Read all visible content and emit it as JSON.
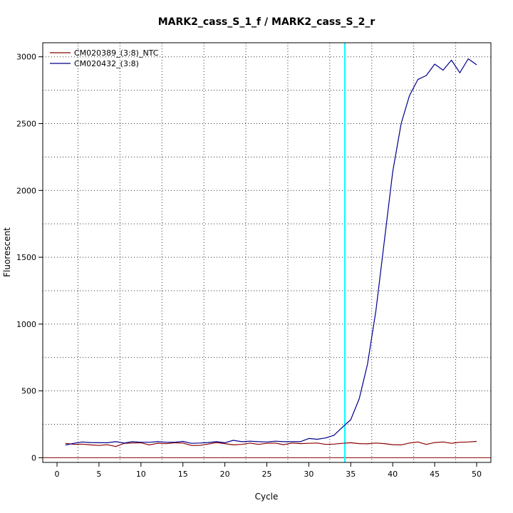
{
  "chart_data": {
    "type": "line",
    "title": "MARK2_cass_S_1_f / MARK2_cass_S_2_r",
    "xlabel": "Cycle",
    "ylabel": "Fluorescent",
    "xlim": [
      -1.7,
      51.7
    ],
    "ylim": [
      -35,
      3105
    ],
    "xticks": [
      0,
      5,
      10,
      15,
      20,
      25,
      30,
      35,
      40,
      45,
      50
    ],
    "yticks": [
      0,
      500,
      1000,
      1500,
      2000,
      2500,
      3000
    ],
    "grid": true,
    "grid_style": "dotted",
    "legend_position": "top-left",
    "threshold": {
      "value": 0,
      "color": "#8b0000"
    },
    "marker_cycle": {
      "value": 34.3,
      "color": "#00ffff"
    },
    "x": [
      1,
      2,
      3,
      4,
      5,
      6,
      7,
      8,
      9,
      10,
      11,
      12,
      13,
      14,
      15,
      16,
      17,
      18,
      19,
      20,
      21,
      22,
      23,
      24,
      25,
      26,
      27,
      28,
      29,
      30,
      31,
      32,
      33,
      34,
      35,
      36,
      37,
      38,
      39,
      40,
      41,
      42,
      43,
      44,
      45,
      46,
      47,
      48,
      49,
      50
    ],
    "series": [
      {
        "name": "CM020389_(3:8)_NTC",
        "color": "#8b0000",
        "values": [
          108,
          100,
          102,
          96,
          92,
          97,
          84,
          108,
          110,
          112,
          96,
          108,
          105,
          112,
          110,
          92,
          92,
          102,
          114,
          106,
          96,
          100,
          110,
          100,
          108,
          110,
          98,
          110,
          106,
          108,
          110,
          100,
          102,
          108,
          112,
          106,
          104,
          110,
          106,
          98,
          96,
          110,
          118,
          100,
          114,
          118,
          108,
          116,
          118,
          122
        ]
      },
      {
        "name": "CM020432_(3:8)",
        "color": "#00008b",
        "values": [
          95,
          108,
          118,
          114,
          112,
          112,
          120,
          110,
          120,
          116,
          116,
          120,
          116,
          116,
          122,
          108,
          110,
          114,
          120,
          112,
          130,
          120,
          124,
          120,
          118,
          124,
          120,
          120,
          120,
          144,
          138,
          148,
          168,
          228,
          285,
          440,
          700,
          1100,
          1620,
          2140,
          2500,
          2710,
          2830,
          2860,
          2945,
          2900,
          2975,
          2880,
          2985,
          2940
        ]
      }
    ]
  }
}
